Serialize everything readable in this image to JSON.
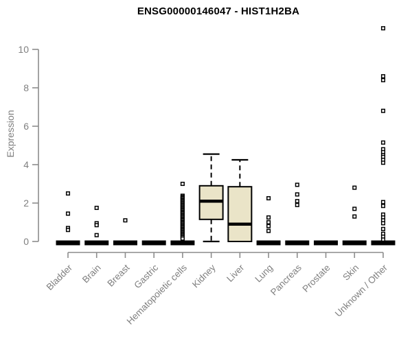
{
  "title": "ENSG00000146047 - HIST1H2BA",
  "colors": {
    "background": "#FFFFFF",
    "title_text": "#000000",
    "axis": "#8C8C8C",
    "axis_text": "#7F7F7F",
    "box_fill": "#EAE4C8",
    "box_stroke": "#000000",
    "outlier_fill": "#FFFFFF",
    "outlier_stroke": "#000000"
  },
  "chart_data": {
    "type": "boxplot",
    "title": "ENSG00000146047 - HIST1H2BA",
    "xlabel": "",
    "ylabel": "Expression",
    "ylim": [
      0,
      11.3
    ],
    "yticks": [
      "0",
      "2",
      "4",
      "6",
      "8",
      "10"
    ],
    "grid": false,
    "legend_position": "none",
    "categories": [
      "Bladder",
      "Brain",
      "Breast",
      "Gastric",
      "Hematopoietic cells",
      "Kidney",
      "Liver",
      "Lung",
      "Pancreas",
      "Prostate",
      "Skin",
      "Unknown / Other"
    ],
    "boxes": [
      {
        "category": "Bladder",
        "whisker_low": 0,
        "q1": 0,
        "median": 0,
        "q3": 0,
        "whisker_high": 0,
        "outliers": [
          2.5,
          1.45,
          0.7,
          0.6
        ]
      },
      {
        "category": "Brain",
        "whisker_low": 0,
        "q1": 0,
        "median": 0,
        "q3": 0,
        "whisker_high": 0,
        "outliers": [
          1.75,
          0.95,
          0.85,
          0.33
        ]
      },
      {
        "category": "Breast",
        "whisker_low": 0,
        "q1": 0,
        "median": 0,
        "q3": 0,
        "whisker_high": 0,
        "outliers": [
          1.1
        ]
      },
      {
        "category": "Gastric",
        "whisker_low": 0,
        "q1": 0,
        "median": 0,
        "q3": 0,
        "whisker_high": 0,
        "outliers": []
      },
      {
        "category": "Hematopoietic cells",
        "whisker_low": 0,
        "q1": 0,
        "median": 0,
        "q3": 0,
        "whisker_high": 0,
        "outliers": [
          3.0,
          2.38,
          2.32,
          2.26,
          2.2,
          2.14,
          2.08,
          2.02,
          1.96,
          1.9,
          1.84,
          1.78,
          1.72,
          1.66,
          1.6,
          1.54,
          1.48,
          1.42,
          1.36,
          1.3,
          1.24,
          1.18,
          1.12,
          1.06,
          1.0,
          0.94,
          0.88,
          0.82,
          0.76,
          0.7,
          0.64,
          0.58,
          0.52,
          0.46,
          0.4,
          0.34,
          0.28,
          0.22,
          0.15
        ]
      },
      {
        "category": "Kidney",
        "whisker_low": 0,
        "q1": 1.15,
        "median": 2.1,
        "q3": 2.9,
        "whisker_high": 4.55,
        "outliers": []
      },
      {
        "category": "Liver",
        "whisker_low": 0,
        "q1": 0,
        "median": 0.9,
        "q3": 2.85,
        "whisker_high": 4.25,
        "outliers": []
      },
      {
        "category": "Lung",
        "whisker_low": 0,
        "q1": 0,
        "median": 0,
        "q3": 0,
        "whisker_high": 0,
        "outliers": [
          2.25,
          1.25,
          1.0,
          0.8,
          0.55
        ]
      },
      {
        "category": "Pancreas",
        "whisker_low": 0,
        "q1": 0,
        "median": 0,
        "q3": 0,
        "whisker_high": 0,
        "outliers": [
          2.95,
          2.45,
          2.1,
          1.9
        ]
      },
      {
        "category": "Prostate",
        "whisker_low": 0,
        "q1": 0,
        "median": 0,
        "q3": 0,
        "whisker_high": 0,
        "outliers": []
      },
      {
        "category": "Skin",
        "whisker_low": 0,
        "q1": 0,
        "median": 0,
        "q3": 0,
        "whisker_high": 0,
        "outliers": [
          2.8,
          1.7,
          1.3
        ]
      },
      {
        "category": "Unknown / Other",
        "whisker_low": 0,
        "q1": 0,
        "median": 0,
        "q3": 0,
        "whisker_high": 0,
        "outliers": [
          11.1,
          8.6,
          8.4,
          6.8,
          5.15,
          4.8,
          4.65,
          4.5,
          4.4,
          4.25,
          4.1,
          2.05,
          1.85,
          1.4,
          1.25,
          1.1,
          0.95,
          0.65,
          0.4,
          0.25,
          0.1
        ]
      }
    ]
  }
}
